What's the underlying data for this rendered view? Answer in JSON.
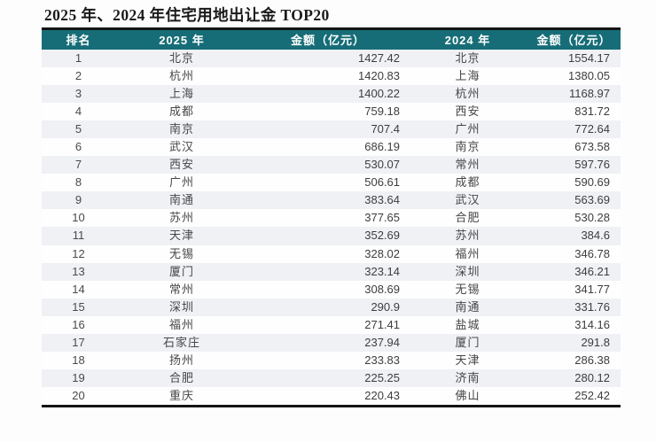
{
  "title": "2025 年、2024 年住宅用地出让金 TOP20",
  "colors": {
    "header_bg": "#166d77",
    "header_text": "#ffffff",
    "row_stripe": "#eff1f5",
    "row_plain": "#fefefe",
    "table_border": "#141414",
    "body_text": "#404040",
    "title_text": "#1a1a1a"
  },
  "table": {
    "headers": {
      "rank": "排名",
      "year2025": "2025 年",
      "amount2025": "金额（亿元）",
      "year2024": "2024 年",
      "amount2024": "金额（亿元）"
    },
    "rows": [
      {
        "rank": "1",
        "city2025": "北京",
        "amount2025": "1427.42",
        "city2024": "北京",
        "amount2024": "1554.17"
      },
      {
        "rank": "2",
        "city2025": "杭州",
        "amount2025": "1420.83",
        "city2024": "上海",
        "amount2024": "1380.05"
      },
      {
        "rank": "3",
        "city2025": "上海",
        "amount2025": "1400.22",
        "city2024": "杭州",
        "amount2024": "1168.97"
      },
      {
        "rank": "4",
        "city2025": "成都",
        "amount2025": "759.18",
        "city2024": "西安",
        "amount2024": "831.72"
      },
      {
        "rank": "5",
        "city2025": "南京",
        "amount2025": "707.4",
        "city2024": "广州",
        "amount2024": "772.64"
      },
      {
        "rank": "6",
        "city2025": "武汉",
        "amount2025": "686.19",
        "city2024": "南京",
        "amount2024": "673.58"
      },
      {
        "rank": "7",
        "city2025": "西安",
        "amount2025": "530.07",
        "city2024": "常州",
        "amount2024": "597.76"
      },
      {
        "rank": "8",
        "city2025": "广州",
        "amount2025": "506.61",
        "city2024": "成都",
        "amount2024": "590.69"
      },
      {
        "rank": "9",
        "city2025": "南通",
        "amount2025": "383.64",
        "city2024": "武汉",
        "amount2024": "563.69"
      },
      {
        "rank": "10",
        "city2025": "苏州",
        "amount2025": "377.65",
        "city2024": "合肥",
        "amount2024": "530.28"
      },
      {
        "rank": "11",
        "city2025": "天津",
        "amount2025": "352.69",
        "city2024": "苏州",
        "amount2024": "384.6"
      },
      {
        "rank": "12",
        "city2025": "无锡",
        "amount2025": "328.02",
        "city2024": "福州",
        "amount2024": "346.78"
      },
      {
        "rank": "13",
        "city2025": "厦门",
        "amount2025": "323.14",
        "city2024": "深圳",
        "amount2024": "346.21"
      },
      {
        "rank": "14",
        "city2025": "常州",
        "amount2025": "308.69",
        "city2024": "无锡",
        "amount2024": "341.77"
      },
      {
        "rank": "15",
        "city2025": "深圳",
        "amount2025": "290.9",
        "city2024": "南通",
        "amount2024": "331.76"
      },
      {
        "rank": "16",
        "city2025": "福州",
        "amount2025": "271.41",
        "city2024": "盐城",
        "amount2024": "314.16"
      },
      {
        "rank": "17",
        "city2025": "石家庄",
        "amount2025": "237.94",
        "city2024": "厦门",
        "amount2024": "291.8"
      },
      {
        "rank": "18",
        "city2025": "扬州",
        "amount2025": "233.83",
        "city2024": "天津",
        "amount2024": "286.38"
      },
      {
        "rank": "19",
        "city2025": "合肥",
        "amount2025": "225.25",
        "city2024": "济南",
        "amount2024": "280.12"
      },
      {
        "rank": "20",
        "city2025": "重庆",
        "amount2025": "220.43",
        "city2024": "佛山",
        "amount2024": "252.42"
      }
    ]
  }
}
